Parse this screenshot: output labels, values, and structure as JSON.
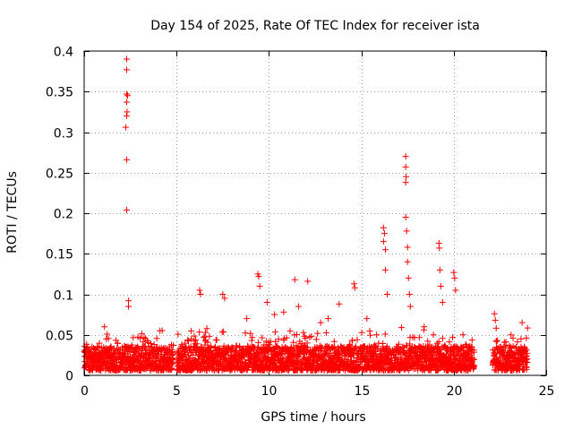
{
  "chart_data": {
    "type": "scatter",
    "title": "Day 154 of 2025, Rate Of TEC Index for receiver ista",
    "xlabel": "GPS time / hours",
    "ylabel": "ROTI / TECUs",
    "xlim": [
      0,
      25
    ],
    "ylim": [
      0,
      0.4
    ],
    "x_ticks": [
      0,
      5,
      10,
      15,
      20,
      25
    ],
    "y_ticks": [
      0,
      0.05,
      0.1,
      0.15,
      0.2,
      0.25,
      0.3,
      0.35,
      0.4
    ],
    "x_tick_labels": [
      "0",
      "5",
      "10",
      "15",
      "20",
      "25"
    ],
    "y_tick_labels": [
      "0",
      "0.05",
      "0.1",
      "0.15",
      "0.2",
      "0.25",
      "0.3",
      "0.35",
      "0.4"
    ],
    "grid": true,
    "marker": "+",
    "color": "#ff0000",
    "data_gaps_hours": [
      [
        4.8,
        5.0
      ],
      [
        21.1,
        22.1
      ]
    ],
    "series": [
      {
        "name": "ROTI",
        "background_band": {
          "x_range": [
            0,
            24
          ],
          "typical_y": [
            0.0,
            0.03
          ]
        },
        "notable_points": [
          {
            "x": 2.3,
            "y": 0.39
          },
          {
            "x": 2.3,
            "y": 0.377
          },
          {
            "x": 2.3,
            "y": 0.347
          },
          {
            "x": 2.35,
            "y": 0.345
          },
          {
            "x": 2.3,
            "y": 0.337
          },
          {
            "x": 2.32,
            "y": 0.325
          },
          {
            "x": 2.3,
            "y": 0.32
          },
          {
            "x": 2.25,
            "y": 0.306
          },
          {
            "x": 2.3,
            "y": 0.266
          },
          {
            "x": 2.3,
            "y": 0.204
          },
          {
            "x": 2.4,
            "y": 0.092
          },
          {
            "x": 2.4,
            "y": 0.085
          },
          {
            "x": 6.25,
            "y": 0.105
          },
          {
            "x": 6.3,
            "y": 0.1
          },
          {
            "x": 7.5,
            "y": 0.1
          },
          {
            "x": 7.6,
            "y": 0.095
          },
          {
            "x": 9.4,
            "y": 0.125
          },
          {
            "x": 9.45,
            "y": 0.122
          },
          {
            "x": 9.5,
            "y": 0.11
          },
          {
            "x": 9.9,
            "y": 0.09
          },
          {
            "x": 11.4,
            "y": 0.118
          },
          {
            "x": 12.1,
            "y": 0.116
          },
          {
            "x": 13.8,
            "y": 0.088
          },
          {
            "x": 14.6,
            "y": 0.113
          },
          {
            "x": 14.65,
            "y": 0.108
          },
          {
            "x": 16.2,
            "y": 0.182
          },
          {
            "x": 16.25,
            "y": 0.175
          },
          {
            "x": 16.2,
            "y": 0.165
          },
          {
            "x": 16.3,
            "y": 0.155
          },
          {
            "x": 16.3,
            "y": 0.13
          },
          {
            "x": 16.4,
            "y": 0.1
          },
          {
            "x": 17.4,
            "y": 0.27
          },
          {
            "x": 17.4,
            "y": 0.257
          },
          {
            "x": 17.42,
            "y": 0.245
          },
          {
            "x": 17.4,
            "y": 0.238
          },
          {
            "x": 17.4,
            "y": 0.195
          },
          {
            "x": 17.45,
            "y": 0.178
          },
          {
            "x": 17.5,
            "y": 0.158
          },
          {
            "x": 17.5,
            "y": 0.14
          },
          {
            "x": 17.55,
            "y": 0.12
          },
          {
            "x": 17.6,
            "y": 0.1
          },
          {
            "x": 17.65,
            "y": 0.085
          },
          {
            "x": 19.2,
            "y": 0.163
          },
          {
            "x": 19.22,
            "y": 0.157
          },
          {
            "x": 19.25,
            "y": 0.13
          },
          {
            "x": 19.3,
            "y": 0.11
          },
          {
            "x": 19.4,
            "y": 0.09
          },
          {
            "x": 20.0,
            "y": 0.127
          },
          {
            "x": 20.05,
            "y": 0.12
          },
          {
            "x": 20.1,
            "y": 0.105
          },
          {
            "x": 22.2,
            "y": 0.076
          },
          {
            "x": 22.25,
            "y": 0.068
          },
          {
            "x": 23.7,
            "y": 0.065
          },
          {
            "x": 1.1,
            "y": 0.06
          },
          {
            "x": 4.1,
            "y": 0.055
          },
          {
            "x": 5.8,
            "y": 0.045
          },
          {
            "x": 8.8,
            "y": 0.07
          },
          {
            "x": 10.3,
            "y": 0.075
          },
          {
            "x": 10.8,
            "y": 0.078
          },
          {
            "x": 11.6,
            "y": 0.085
          },
          {
            "x": 12.8,
            "y": 0.065
          },
          {
            "x": 13.2,
            "y": 0.07
          },
          {
            "x": 15.3,
            "y": 0.07
          },
          {
            "x": 18.4,
            "y": 0.06
          },
          {
            "x": 18.9,
            "y": 0.05
          },
          {
            "x": 20.5,
            "y": 0.05
          },
          {
            "x": 23.1,
            "y": 0.05
          }
        ]
      }
    ]
  }
}
